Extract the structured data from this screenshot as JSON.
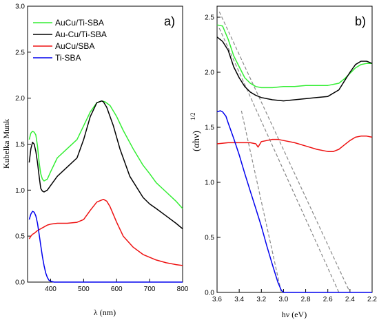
{
  "chart_data": [
    {
      "panel": "a)",
      "type": "line",
      "xlabel": "λ (nm)",
      "ylabel": "Kubelka Munk",
      "xlim": [
        330,
        800
      ],
      "ylim": [
        0,
        3.0
      ],
      "xticks": [
        "400",
        "500",
        "600",
        "700",
        "800"
      ],
      "yticks": [
        "0.0",
        "0.5",
        "1.0",
        "1.5",
        "2.0",
        "2.5",
        "3.0"
      ],
      "legend_position": "top-left",
      "series": [
        {
          "name": "AuCu/Ti-SBA",
          "color": "#33ee33",
          "x": [
            335,
            340,
            345,
            350,
            355,
            360,
            365,
            370,
            375,
            380,
            390,
            400,
            420,
            450,
            480,
            500,
            520,
            540,
            555,
            565,
            580,
            600,
            620,
            650,
            680,
            700,
            720,
            750,
            780,
            800
          ],
          "y": [
            1.55,
            1.62,
            1.64,
            1.63,
            1.6,
            1.48,
            1.3,
            1.18,
            1.12,
            1.1,
            1.12,
            1.2,
            1.35,
            1.45,
            1.55,
            1.7,
            1.85,
            1.95,
            1.97,
            1.96,
            1.92,
            1.8,
            1.65,
            1.45,
            1.27,
            1.18,
            1.08,
            0.98,
            0.88,
            0.8
          ]
        },
        {
          "name": "Au-Cu/Ti-SBA",
          "color": "#000000",
          "x": [
            335,
            340,
            345,
            350,
            355,
            360,
            365,
            370,
            375,
            380,
            390,
            400,
            420,
            450,
            480,
            500,
            520,
            540,
            555,
            560,
            570,
            590,
            610,
            640,
            680,
            700,
            720,
            750,
            780,
            800
          ],
          "y": [
            1.3,
            1.45,
            1.52,
            1.5,
            1.42,
            1.3,
            1.15,
            1.02,
            0.99,
            0.98,
            1.0,
            1.05,
            1.15,
            1.25,
            1.35,
            1.55,
            1.8,
            1.95,
            1.97,
            1.96,
            1.9,
            1.7,
            1.45,
            1.15,
            0.92,
            0.85,
            0.8,
            0.72,
            0.64,
            0.58
          ]
        },
        {
          "name": "AuCu/SBA",
          "color": "#ee1111",
          "x": [
            335,
            340,
            345,
            350,
            360,
            370,
            380,
            390,
            400,
            420,
            450,
            480,
            500,
            520,
            540,
            560,
            570,
            580,
            600,
            620,
            650,
            680,
            700,
            720,
            750,
            780,
            800
          ],
          "y": [
            0.47,
            0.5,
            0.52,
            0.53,
            0.56,
            0.58,
            0.6,
            0.62,
            0.63,
            0.64,
            0.64,
            0.65,
            0.68,
            0.78,
            0.87,
            0.9,
            0.88,
            0.82,
            0.65,
            0.5,
            0.38,
            0.3,
            0.27,
            0.24,
            0.21,
            0.19,
            0.18
          ]
        },
        {
          "name": "Ti-SBA",
          "color": "#0000ee",
          "x": [
            335,
            340,
            345,
            350,
            355,
            360,
            365,
            370,
            375,
            380,
            385,
            390,
            395,
            400,
            410,
            420,
            450,
            500,
            600,
            700,
            800
          ],
          "y": [
            0.68,
            0.74,
            0.77,
            0.76,
            0.72,
            0.64,
            0.52,
            0.4,
            0.28,
            0.18,
            0.1,
            0.05,
            0.02,
            0.01,
            0.0,
            0.0,
            0.0,
            0.0,
            0.0,
            0.0,
            0.0
          ]
        }
      ]
    },
    {
      "panel": "b)",
      "type": "line",
      "xlabel": "hν (eV)",
      "ylabel": "(αhν)",
      "ylabel_exponent": "1/2",
      "xlim": [
        3.6,
        2.2
      ],
      "ylim": [
        0,
        2.6
      ],
      "xticks": [
        "3.6",
        "3.4",
        "3.2",
        "3.0",
        "2.8",
        "2.6",
        "2.4",
        "2.2"
      ],
      "yticks": [
        "0.0",
        "0.5",
        "1.0",
        "1.5",
        "2.0",
        "2.5"
      ],
      "series": [
        {
          "color": "#33ee33",
          "x": [
            3.6,
            3.55,
            3.5,
            3.45,
            3.4,
            3.35,
            3.3,
            3.25,
            3.2,
            3.1,
            3.0,
            2.9,
            2.8,
            2.7,
            2.6,
            2.5,
            2.45,
            2.4,
            2.35,
            2.3,
            2.25,
            2.2
          ],
          "y": [
            2.43,
            2.42,
            2.3,
            2.15,
            2.05,
            1.95,
            1.9,
            1.87,
            1.86,
            1.86,
            1.87,
            1.87,
            1.88,
            1.88,
            1.88,
            1.9,
            1.94,
            1.99,
            2.04,
            2.07,
            2.08,
            2.08
          ]
        },
        {
          "color": "#000000",
          "x": [
            3.6,
            3.55,
            3.5,
            3.45,
            3.4,
            3.35,
            3.3,
            3.25,
            3.2,
            3.1,
            3.0,
            2.9,
            2.8,
            2.7,
            2.6,
            2.5,
            2.45,
            2.4,
            2.35,
            2.3,
            2.25,
            2.2
          ],
          "y": [
            2.32,
            2.28,
            2.2,
            2.05,
            1.95,
            1.87,
            1.82,
            1.79,
            1.77,
            1.75,
            1.74,
            1.75,
            1.76,
            1.77,
            1.78,
            1.84,
            1.92,
            2.0,
            2.07,
            2.1,
            2.1,
            2.08
          ]
        },
        {
          "color": "#ee1111",
          "x": [
            3.6,
            3.5,
            3.4,
            3.3,
            3.25,
            3.23,
            3.2,
            3.15,
            3.1,
            3.05,
            3.0,
            2.9,
            2.8,
            2.7,
            2.6,
            2.55,
            2.5,
            2.45,
            2.4,
            2.35,
            2.3,
            2.25,
            2.2
          ],
          "y": [
            1.35,
            1.36,
            1.36,
            1.36,
            1.35,
            1.32,
            1.37,
            1.38,
            1.39,
            1.39,
            1.38,
            1.36,
            1.33,
            1.3,
            1.28,
            1.28,
            1.3,
            1.34,
            1.38,
            1.41,
            1.42,
            1.42,
            1.41
          ]
        },
        {
          "color": "#0000ee",
          "x": [
            3.6,
            3.57,
            3.55,
            3.52,
            3.5,
            3.45,
            3.4,
            3.35,
            3.3,
            3.25,
            3.2,
            3.15,
            3.1,
            3.05,
            3.02,
            3.0,
            2.98,
            2.95,
            2.9,
            2.8,
            2.6,
            2.4,
            2.2
          ],
          "y": [
            1.64,
            1.65,
            1.64,
            1.6,
            1.54,
            1.4,
            1.25,
            1.08,
            0.92,
            0.76,
            0.6,
            0.42,
            0.25,
            0.09,
            0.02,
            0.0,
            0.0,
            0.0,
            0.0,
            0.0,
            0.0,
            0.0,
            0.0
          ]
        }
      ],
      "fit_lines": [
        {
          "color": "#888888",
          "x": [
            3.58,
            2.4
          ],
          "y": [
            2.55,
            0.0
          ]
        },
        {
          "color": "#888888",
          "x": [
            3.58,
            2.5
          ],
          "y": [
            2.4,
            0.0
          ]
        },
        {
          "color": "#888888",
          "x": [
            3.38,
            3.02
          ],
          "y": [
            1.65,
            0.0
          ]
        }
      ]
    }
  ]
}
